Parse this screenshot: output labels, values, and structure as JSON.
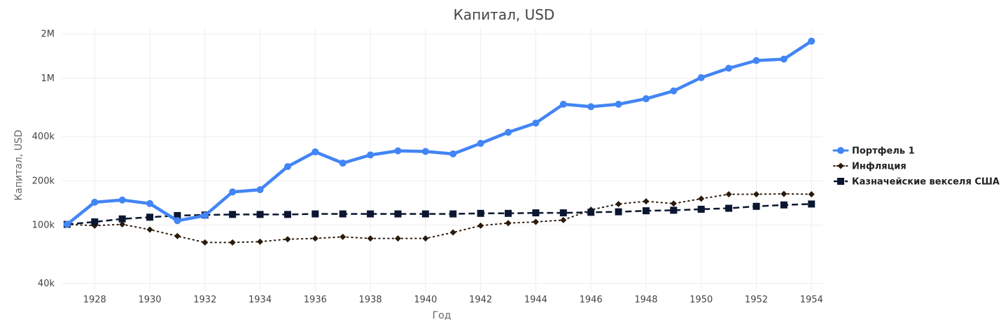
{
  "chart_data": {
    "type": "line",
    "title": "Капитал, USD",
    "xlabel": "Год",
    "ylabel": "Капитал, USD",
    "yscale": "log",
    "ylim": [
      35000,
      2200000
    ],
    "xlim": [
      1926.8,
      1954.4
    ],
    "grid": true,
    "legend_position": "right",
    "x": [
      1927,
      1928,
      1929,
      1930,
      1931,
      1932,
      1933,
      1934,
      1935,
      1936,
      1937,
      1938,
      1939,
      1940,
      1941,
      1942,
      1943,
      1944,
      1945,
      1946,
      1947,
      1948,
      1949,
      1950,
      1951,
      1952,
      1953,
      1954
    ],
    "x_ticks": [
      1928,
      1930,
      1932,
      1934,
      1936,
      1938,
      1940,
      1942,
      1944,
      1946,
      1948,
      1950,
      1952,
      1954
    ],
    "y_ticks": [
      {
        "value": 40000,
        "label": "40k"
      },
      {
        "value": 100000,
        "label": "100k"
      },
      {
        "value": 200000,
        "label": "200k"
      },
      {
        "value": 400000,
        "label": "400k"
      },
      {
        "value": 1000000,
        "label": "1M"
      },
      {
        "value": 2000000,
        "label": "2M"
      }
    ],
    "series": [
      {
        "name": "Портфель 1",
        "color": "#4285f4",
        "style": "solid",
        "marker": "circle",
        "values": [
          101000,
          143000,
          148000,
          140000,
          107000,
          116000,
          168000,
          174000,
          250000,
          315000,
          264000,
          300000,
          320000,
          317000,
          305000,
          360000,
          428000,
          495000,
          665000,
          640000,
          665000,
          725000,
          820000,
          1010000,
          1170000,
          1320000,
          1350000,
          1790000
        ]
      },
      {
        "name": "Инфляция",
        "color": "#2b1a0a",
        "style": "dotted",
        "marker": "diamond",
        "values": [
          101000,
          99000,
          101000,
          93000,
          84000,
          76000,
          76000,
          77000,
          80000,
          81000,
          83000,
          81000,
          81000,
          81000,
          89000,
          99000,
          103000,
          105000,
          108000,
          127000,
          139000,
          145000,
          140000,
          151000,
          162000,
          162000,
          163000,
          162000
        ]
      },
      {
        "name": "Казначейские векселя США",
        "color": "#0b1630",
        "style": "dashed",
        "marker": "square",
        "values": [
          101000,
          105000,
          110000,
          113000,
          116000,
          117000,
          118000,
          118000,
          118000,
          119000,
          119000,
          119000,
          119000,
          119000,
          119000,
          120000,
          120000,
          121000,
          121000,
          122000,
          123000,
          125000,
          126000,
          128000,
          130000,
          134000,
          137000,
          139000
        ]
      }
    ]
  }
}
